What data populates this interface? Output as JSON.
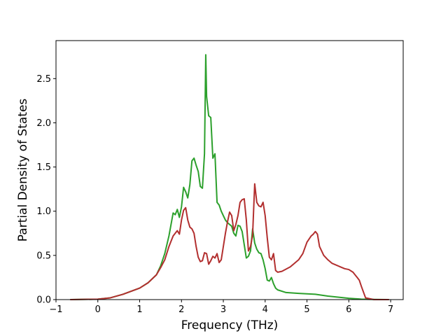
{
  "chart_data": {
    "type": "line",
    "title": "",
    "xlabel": "Frequency (THz)",
    "ylabel": "Partial Density of States",
    "xlim": [
      -1,
      7.3
    ],
    "ylim": [
      0,
      2.93
    ],
    "xticks": [
      -1,
      0,
      1,
      2,
      3,
      4,
      5,
      6,
      7
    ],
    "xtick_labels": [
      "−1",
      "0",
      "1",
      "2",
      "3",
      "4",
      "5",
      "6",
      "7"
    ],
    "yticks": [
      0,
      0.5,
      1.0,
      1.5,
      2.0,
      2.5
    ],
    "ytick_labels": [
      "0.0",
      "0.5",
      "1.0",
      "1.5",
      "2.0",
      "2.5"
    ],
    "grid": false,
    "legend": "none",
    "series": [
      {
        "color": "#2ca02c",
        "x": [
          -0.65,
          0,
          0.3,
          0.6,
          1.0,
          1.2,
          1.4,
          1.5,
          1.6,
          1.7,
          1.75,
          1.8,
          1.85,
          1.9,
          1.95,
          2.0,
          2.05,
          2.1,
          2.15,
          2.2,
          2.25,
          2.3,
          2.35,
          2.4,
          2.45,
          2.5,
          2.55,
          2.58,
          2.6,
          2.65,
          2.7,
          2.75,
          2.8,
          2.85,
          2.9,
          2.95,
          3.0,
          3.05,
          3.1,
          3.15,
          3.2,
          3.25,
          3.3,
          3.35,
          3.4,
          3.45,
          3.5,
          3.55,
          3.6,
          3.65,
          3.7,
          3.75,
          3.8,
          3.85,
          3.9,
          3.95,
          4.0,
          4.05,
          4.1,
          4.15,
          4.2,
          4.25,
          4.3,
          4.5,
          4.8,
          5.0,
          5.2,
          5.5,
          6.0,
          6.3,
          6.6,
          6.95
        ],
        "y": [
          0,
          0.005,
          0.02,
          0.06,
          0.13,
          0.19,
          0.28,
          0.38,
          0.52,
          0.72,
          0.85,
          0.98,
          0.96,
          1.02,
          0.93,
          1.05,
          1.27,
          1.22,
          1.15,
          1.3,
          1.57,
          1.6,
          1.52,
          1.45,
          1.28,
          1.26,
          1.65,
          2.77,
          2.3,
          2.08,
          2.06,
          1.6,
          1.65,
          1.1,
          1.07,
          1.0,
          0.95,
          0.9,
          0.87,
          0.85,
          0.83,
          0.75,
          0.72,
          0.84,
          0.83,
          0.77,
          0.62,
          0.47,
          0.49,
          0.55,
          0.8,
          0.64,
          0.57,
          0.53,
          0.52,
          0.45,
          0.35,
          0.22,
          0.21,
          0.25,
          0.18,
          0.13,
          0.11,
          0.08,
          0.07,
          0.065,
          0.06,
          0.04,
          0.015,
          0.005,
          0.002,
          0
        ]
      },
      {
        "color": "#b22f2f",
        "x": [
          -0.65,
          0,
          0.3,
          0.6,
          1.0,
          1.2,
          1.4,
          1.5,
          1.6,
          1.7,
          1.75,
          1.8,
          1.85,
          1.9,
          1.95,
          2.0,
          2.05,
          2.1,
          2.15,
          2.2,
          2.25,
          2.3,
          2.35,
          2.4,
          2.45,
          2.5,
          2.55,
          2.6,
          2.65,
          2.7,
          2.75,
          2.8,
          2.85,
          2.9,
          2.95,
          3.0,
          3.05,
          3.1,
          3.15,
          3.2,
          3.25,
          3.3,
          3.35,
          3.4,
          3.45,
          3.5,
          3.55,
          3.6,
          3.65,
          3.7,
          3.75,
          3.8,
          3.85,
          3.9,
          3.95,
          4.0,
          4.05,
          4.1,
          4.15,
          4.2,
          4.25,
          4.3,
          4.4,
          4.6,
          4.8,
          4.9,
          5.0,
          5.1,
          5.15,
          5.2,
          5.25,
          5.3,
          5.4,
          5.5,
          5.6,
          5.8,
          5.9,
          6.0,
          6.1,
          6.2,
          6.25,
          6.3,
          6.4,
          6.6,
          6.95
        ],
        "y": [
          0,
          0.005,
          0.02,
          0.06,
          0.13,
          0.19,
          0.28,
          0.36,
          0.45,
          0.6,
          0.66,
          0.72,
          0.75,
          0.78,
          0.74,
          0.9,
          1.01,
          1.04,
          0.9,
          0.82,
          0.8,
          0.75,
          0.6,
          0.48,
          0.43,
          0.44,
          0.53,
          0.52,
          0.4,
          0.44,
          0.49,
          0.47,
          0.52,
          0.42,
          0.45,
          0.6,
          0.75,
          0.88,
          0.99,
          0.95,
          0.78,
          0.85,
          0.95,
          1.1,
          1.13,
          1.14,
          0.9,
          0.55,
          0.6,
          0.73,
          1.31,
          1.1,
          1.06,
          1.05,
          1.1,
          0.95,
          0.7,
          0.48,
          0.45,
          0.52,
          0.33,
          0.31,
          0.32,
          0.37,
          0.45,
          0.52,
          0.65,
          0.72,
          0.74,
          0.77,
          0.74,
          0.6,
          0.5,
          0.45,
          0.41,
          0.37,
          0.35,
          0.34,
          0.31,
          0.25,
          0.22,
          0.15,
          0.02,
          0,
          0
        ]
      }
    ]
  }
}
